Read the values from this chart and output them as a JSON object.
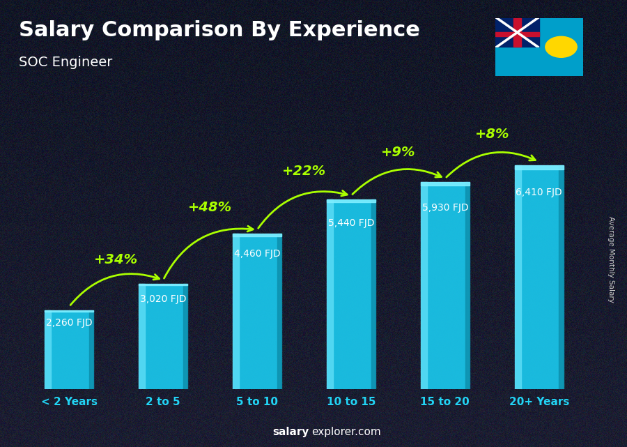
{
  "title": "Salary Comparison By Experience",
  "subtitle": "SOC Engineer",
  "ylabel": "Average Monthly Salary",
  "footer_bold": "salary",
  "footer_normal": "explorer.com",
  "categories": [
    "< 2 Years",
    "2 to 5",
    "5 to 10",
    "10 to 15",
    "15 to 20",
    "20+ Years"
  ],
  "values": [
    2260,
    3020,
    4460,
    5440,
    5930,
    6410
  ],
  "value_labels": [
    "2,260 FJD",
    "3,020 FJD",
    "4,460 FJD",
    "5,440 FJD",
    "5,930 FJD",
    "6,410 FJD"
  ],
  "pct_labels": [
    "+34%",
    "+48%",
    "+22%",
    "+9%",
    "+8%"
  ],
  "bar_color_main": "#1ac8ed",
  "bar_color_light": "#5adcf5",
  "bar_color_dark": "#0e92b0",
  "bar_color_top": "#7eeeff",
  "bg_dark": "#1a2035",
  "title_color": "#ffffff",
  "subtitle_color": "#ffffff",
  "value_label_color": "#ffffff",
  "pct_color": "#aaff00",
  "cat_label_color": "#22d4f5",
  "footer_color": "#aaaaaa",
  "footer_bold_color": "#ffffff",
  "ylim_max": 8200,
  "bar_width": 0.52,
  "arrow_rad": -0.35,
  "title_fontsize": 22,
  "subtitle_fontsize": 14,
  "value_fontsize": 10,
  "pct_fontsize": 14,
  "cat_fontsize": 11
}
